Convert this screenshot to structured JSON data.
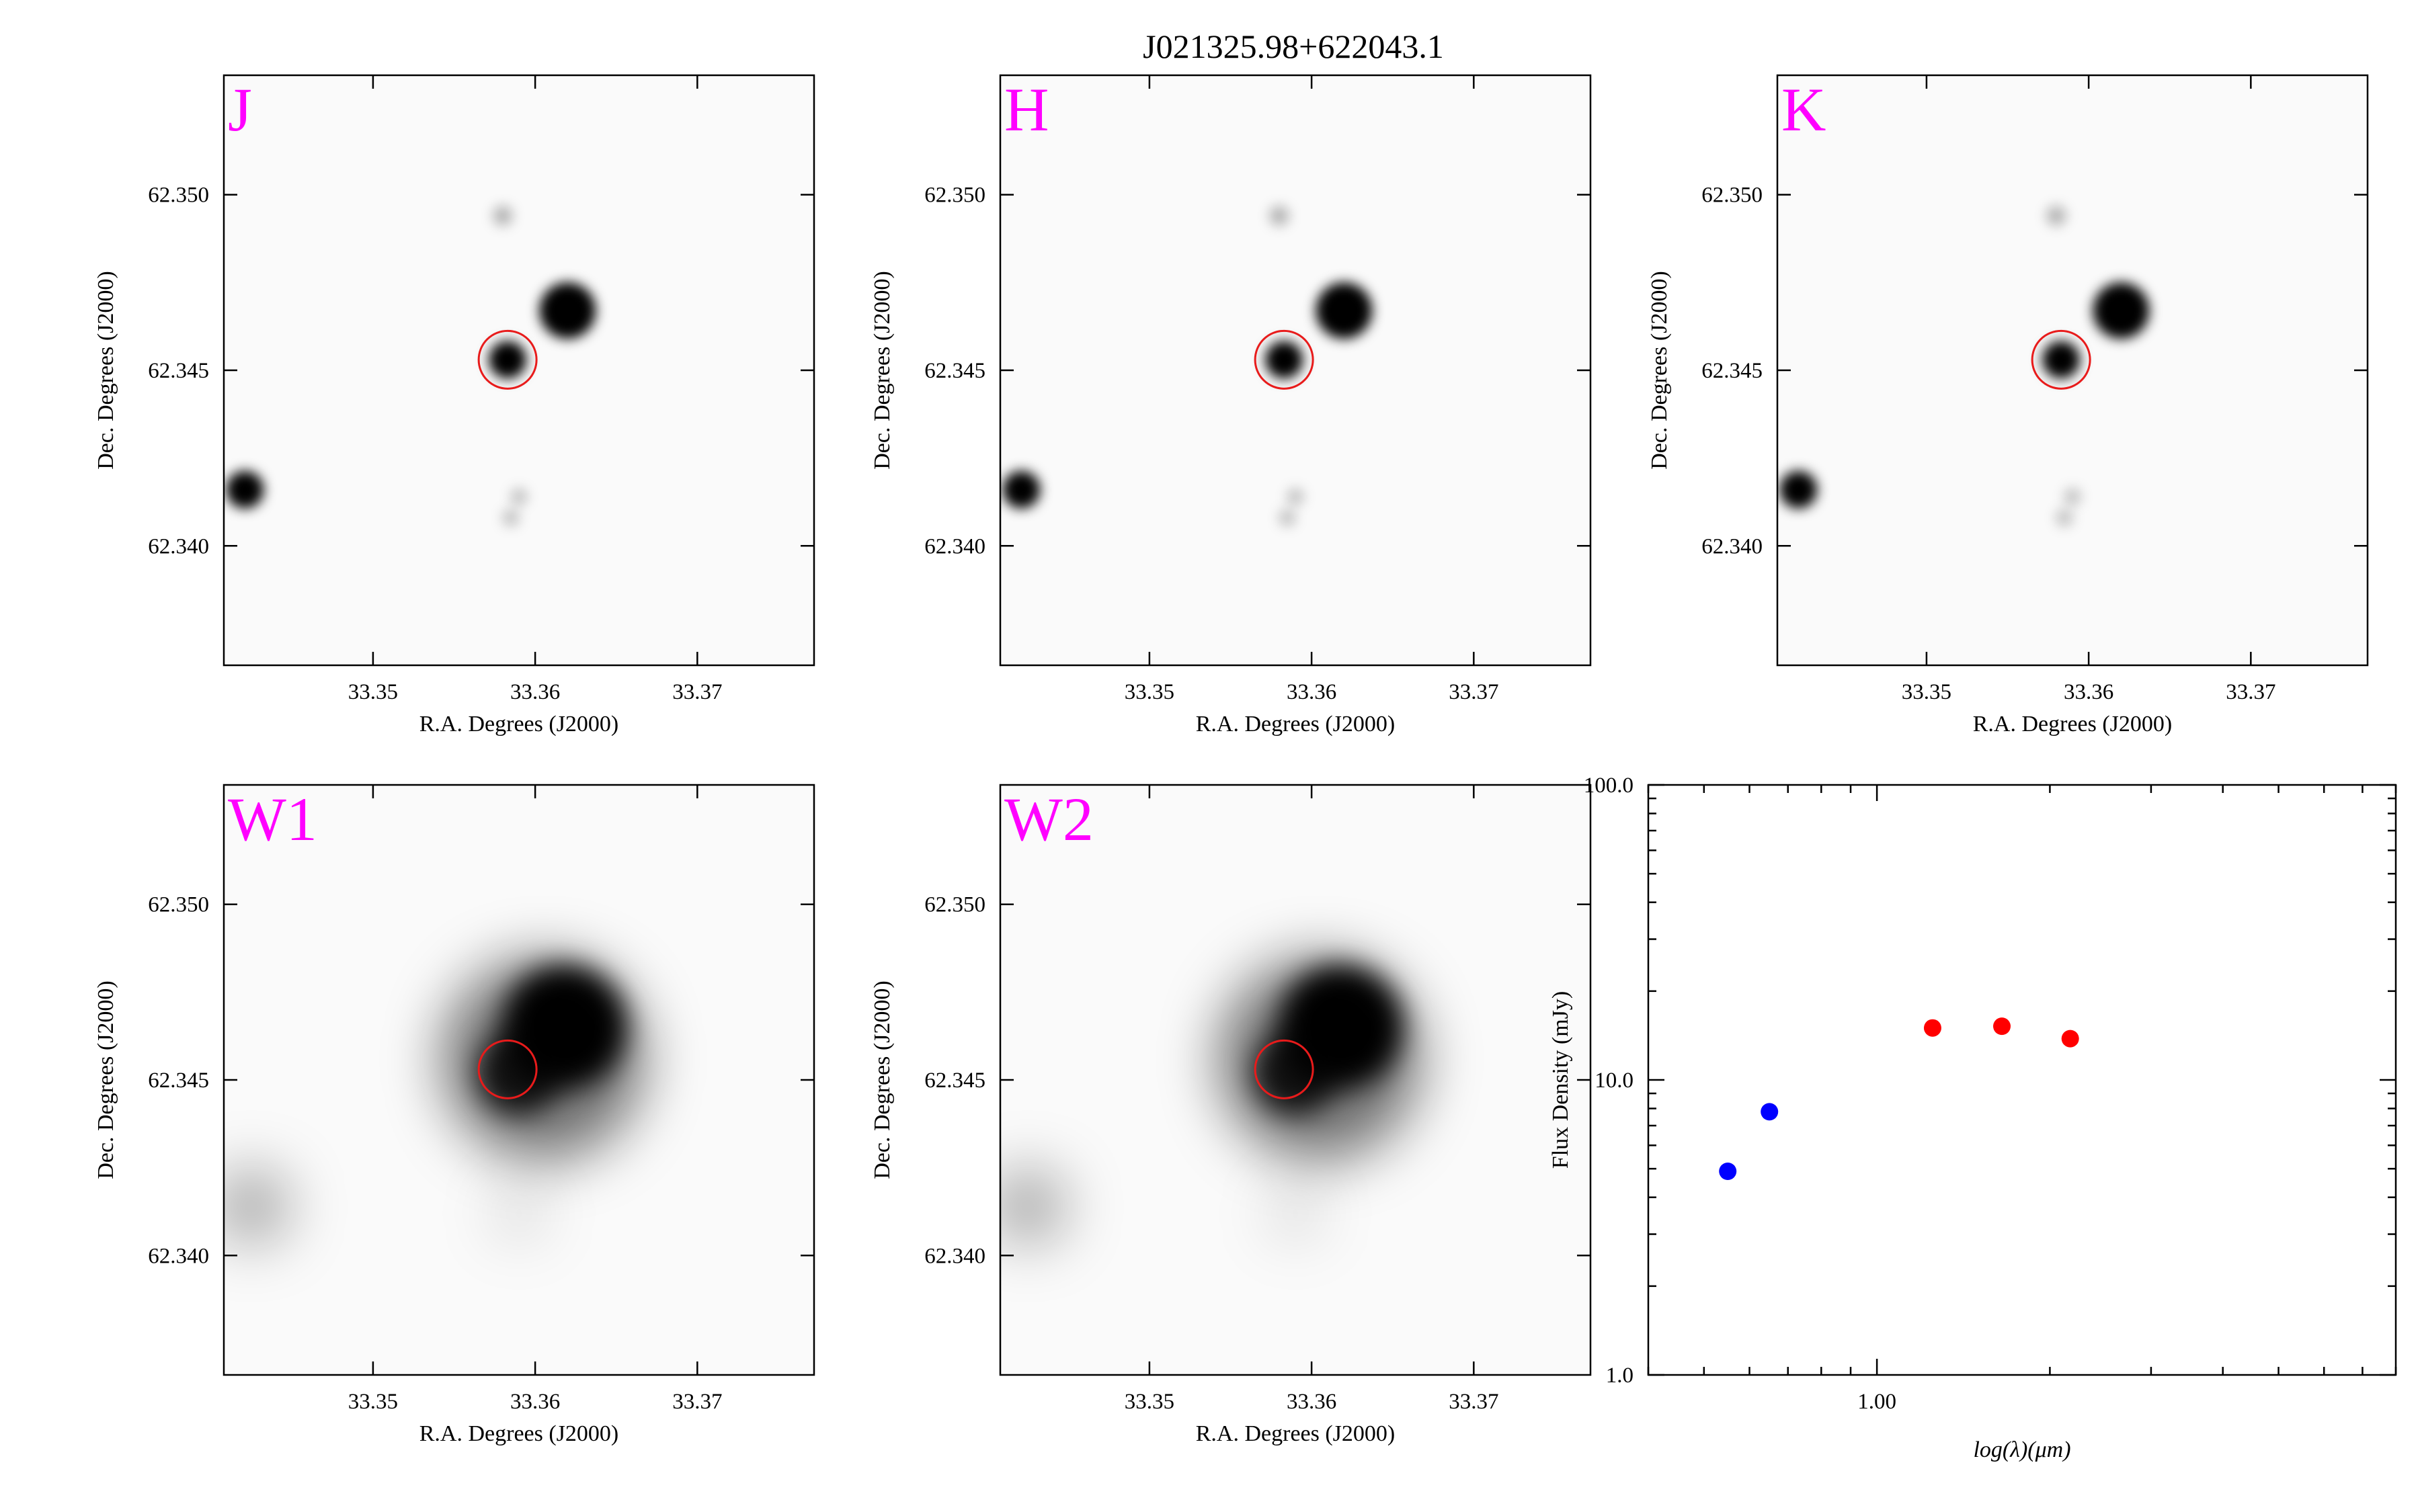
{
  "title": "J021325.98+622043.1",
  "colors": {
    "band_label": "#ff00ff",
    "marker_circle": "#e81b1b",
    "sed_optical": "#0000ff",
    "sed_infrared": "#ff0000",
    "axes": "#000000"
  },
  "image_panels": [
    {
      "id": "J",
      "band": "J",
      "xlabel": "R.A. Degrees (J2000)",
      "ylabel": "Dec. Degrees (J2000)"
    },
    {
      "id": "H",
      "band": "H",
      "xlabel": "R.A. Degrees (J2000)",
      "ylabel": "Dec. Degrees (J2000)"
    },
    {
      "id": "K",
      "band": "K",
      "xlabel": "R.A. Degrees (J2000)",
      "ylabel": "Dec. Degrees (J2000)"
    },
    {
      "id": "W1",
      "band": "W1",
      "xlabel": "R.A. Degrees (J2000)",
      "ylabel": "Dec. Degrees (J2000)"
    },
    {
      "id": "W2",
      "band": "W2",
      "xlabel": "R.A. Degrees (J2000)",
      "ylabel": "Dec. Degrees (J2000)"
    }
  ],
  "image_axes": {
    "xticks": [
      "33.35",
      "33.36",
      "33.37"
    ],
    "yticks": [
      "62.350",
      "62.345",
      "62.340"
    ],
    "xlim": [
      33.3408,
      33.3772
    ],
    "ylim": [
      62.3366,
      62.3534
    ]
  },
  "chart_data": {
    "type": "scatter",
    "title": "",
    "xlabel": "log(λ)(μm)",
    "ylabel": "Flux Density (mJy)",
    "x_scale": "log",
    "y_scale": "log",
    "xlim": [
      0.4,
      8.0
    ],
    "ylim": [
      1.0,
      100.0
    ],
    "xticks": [
      "1.00"
    ],
    "yticks": [
      "100.0",
      "10.0",
      "1.0"
    ],
    "series": [
      {
        "color": "#0000ff",
        "x": [
          0.55,
          0.65
        ],
        "y": [
          4.9,
          7.8
        ]
      },
      {
        "color": "#ff0000",
        "x": [
          1.25,
          1.65,
          2.17
        ],
        "y": [
          15.0,
          15.2,
          13.8
        ]
      }
    ]
  }
}
